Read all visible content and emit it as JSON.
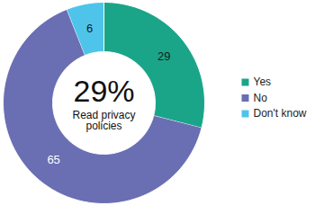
{
  "chart_data": {
    "type": "pie",
    "categories": [
      "Yes",
      "No",
      "Don't know"
    ],
    "values": [
      29,
      65,
      6
    ],
    "colors": [
      "#1aa589",
      "#6a6fb3",
      "#4fc4ea"
    ],
    "data_labels": true,
    "legend": "right",
    "annotations": [
      "29%",
      "Read privacy policies"
    ]
  }
}
